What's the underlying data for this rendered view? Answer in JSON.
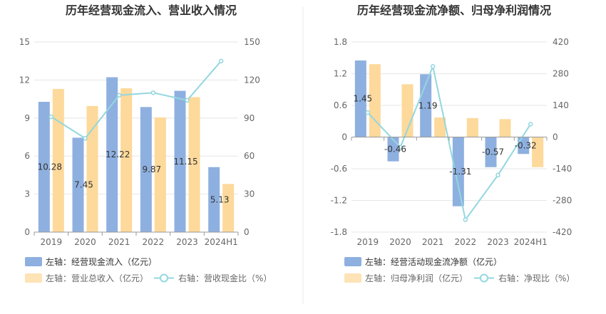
{
  "chart_data": [
    {
      "type": "bar",
      "title": "历年经营现金流入、营业收入情况",
      "categories": [
        "2019",
        "2020",
        "2021",
        "2022",
        "2023",
        "2024H1"
      ],
      "left_axis": {
        "ticks": [
          "0",
          "3",
          "6",
          "9",
          "12",
          "15"
        ],
        "ylim": [
          0,
          15
        ]
      },
      "right_axis": {
        "ticks": [
          "0",
          "30",
          "60",
          "90",
          "120",
          "150"
        ],
        "ylim": [
          0,
          150
        ]
      },
      "series": [
        {
          "name": "左轴：经营现金流入（亿元）",
          "type": "bar",
          "axis": "left",
          "color": "#8eb0e0",
          "values": [
            10.28,
            7.45,
            12.22,
            9.87,
            11.15,
            5.13
          ],
          "labels": [
            "10.28",
            "7.45",
            "12.22",
            "9.87",
            "11.15",
            "5.13"
          ]
        },
        {
          "name": "左轴：营业总收入（亿元）",
          "type": "bar",
          "axis": "left",
          "color": "#fdd99b",
          "values": [
            11.3,
            9.95,
            11.35,
            9.05,
            10.65,
            3.8
          ]
        },
        {
          "name": "右轴：营收现金比（%）",
          "type": "line",
          "axis": "right",
          "color": "#93d7df",
          "values": [
            91,
            74,
            108,
            110,
            104,
            135
          ]
        }
      ],
      "grid": true,
      "legend": "bottom-left"
    },
    {
      "type": "bar",
      "title": "历年经营现金流净额、归母净利润情况",
      "categories": [
        "2019",
        "2020",
        "2021",
        "2022",
        "2023",
        "2024H1"
      ],
      "left_axis": {
        "ticks": [
          "-1.8",
          "-1.2",
          "-0.6",
          "0",
          "0.6",
          "1.2",
          "1.8"
        ],
        "ylim": [
          -1.8,
          1.8
        ]
      },
      "right_axis": {
        "ticks": [
          "-420",
          "-280",
          "-140",
          "0",
          "140",
          "280",
          "420"
        ],
        "ylim": [
          -420,
          420
        ]
      },
      "series": [
        {
          "name": "左轴：经营活动现金流净额（亿元）",
          "type": "bar",
          "axis": "left",
          "color": "#8eb0e0",
          "values": [
            1.45,
            -0.46,
            1.19,
            -1.31,
            -0.57,
            -0.32
          ],
          "labels": [
            "1.45",
            "-0.46",
            "1.19",
            "-1.31",
            "-0.57",
            "-0.32"
          ]
        },
        {
          "name": "左轴：归母净利润（亿元）",
          "type": "bar",
          "axis": "left",
          "color": "#fdd99b",
          "values": [
            1.38,
            1.0,
            0.37,
            0.36,
            0.34,
            -0.57
          ]
        },
        {
          "name": "右轴：净现比（%）",
          "type": "line",
          "axis": "right",
          "color": "#93d7df",
          "values": [
            108,
            -45,
            312,
            -365,
            -168,
            57
          ]
        }
      ],
      "grid": true,
      "legend": "bottom-left"
    }
  ]
}
